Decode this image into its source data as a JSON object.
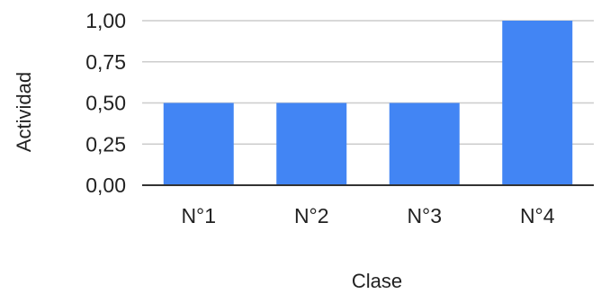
{
  "chart_data": {
    "type": "bar",
    "categories": [
      "N°1",
      "N°2",
      "N°3",
      "N°4"
    ],
    "values": [
      0.5,
      0.5,
      0.5,
      1.0
    ],
    "xlabel": "Clase",
    "ylabel": "Actividad",
    "ylim": [
      0,
      1
    ],
    "yticks": [
      "0,00",
      "0,25",
      "0,50",
      "0,75",
      "1,00"
    ],
    "grid": true,
    "bar_color": "#4285f4"
  }
}
